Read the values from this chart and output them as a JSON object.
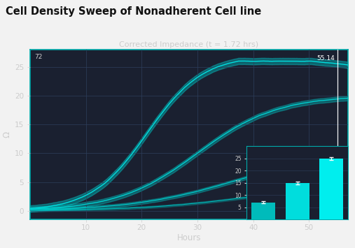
{
  "title": "Cell Density Sweep of Nonadherent Cell line",
  "plot_title": "Corrected Impedance (t = 1.72 hrs)",
  "xlabel": "Hours",
  "ylabel": "Ω",
  "fig_bg": "#f2f2f2",
  "plot_bg": "#1a2030",
  "grid_color": "#2e3f5c",
  "title_color": "#111111",
  "text_color": "#cccccc",
  "vline_color": "#ffffff",
  "vline_x": 55.14,
  "vline_label": "55.14",
  "top_label": "72",
  "yticks": [
    0,
    5,
    10,
    15,
    20,
    25
  ],
  "xticks": [
    10,
    20,
    30,
    40,
    50
  ],
  "ylim": [
    -1.5,
    28
  ],
  "xlim": [
    0,
    57
  ],
  "bar_values": [
    7,
    15,
    25
  ],
  "bar_errors": [
    0.4,
    0.5,
    0.6
  ],
  "bar_colors": [
    "#00bbbb",
    "#00dddd",
    "#00eeee"
  ],
  "bar_ylim": [
    0,
    30
  ],
  "bar_yticks": [
    5,
    10,
    15,
    20,
    25
  ],
  "curve_colors": [
    "#00e0e0",
    "#00d0d0",
    "#00c8c8",
    "#00b8b8"
  ],
  "fill_alpha": 0.35
}
